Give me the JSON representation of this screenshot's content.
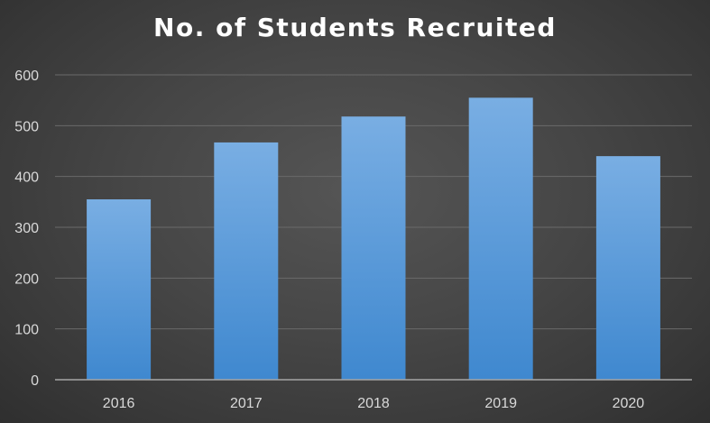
{
  "chart_data": {
    "type": "bar",
    "title": "No. of Students Recruited",
    "categories": [
      "2016",
      "2017",
      "2018",
      "2019",
      "2020"
    ],
    "values": [
      355,
      467,
      518,
      555,
      440
    ],
    "xlabel": "",
    "ylabel": "",
    "ylim": [
      0,
      600
    ],
    "yticks": [
      "0",
      "100",
      "200",
      "300",
      "400",
      "500",
      "600"
    ],
    "grid": true,
    "legend": "none",
    "colors": {
      "bar_top": "#79aee3",
      "bar_bottom": "#3f88cf",
      "grid": "#6a6a6a",
      "axis": "#a6a6a6",
      "background": "#464646",
      "text": "#d9d9d9",
      "title": "#ffffff"
    }
  }
}
